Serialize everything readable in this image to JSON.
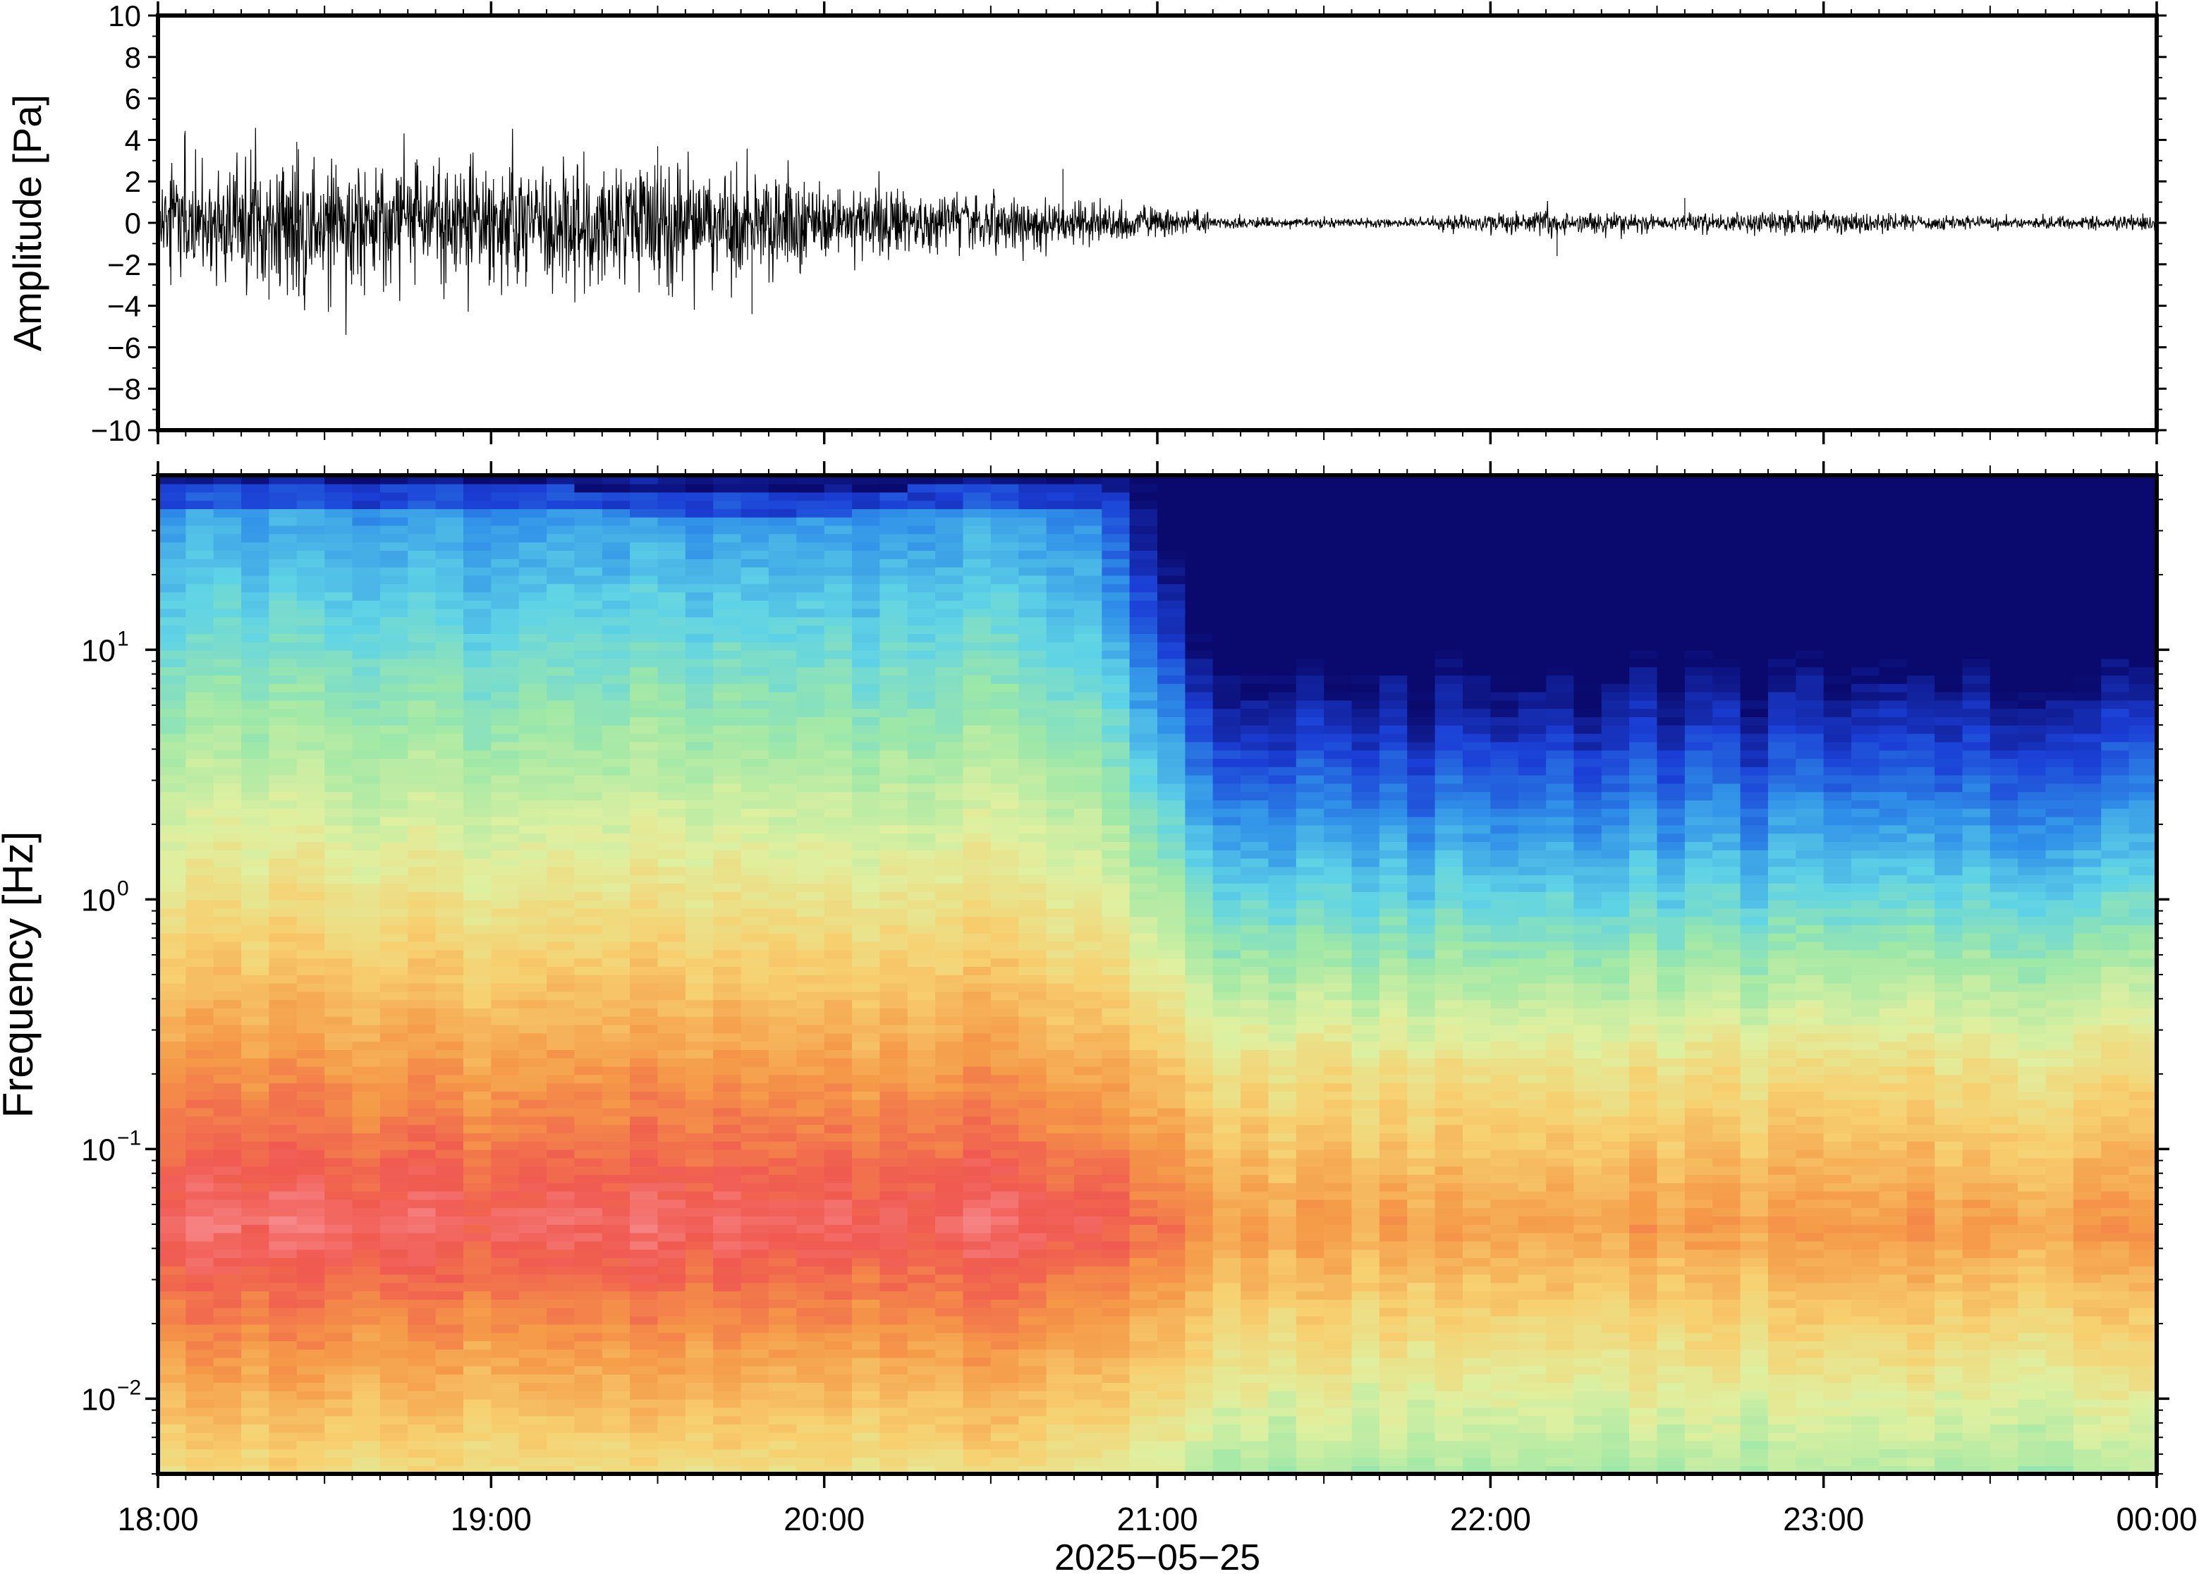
{
  "figure": {
    "date_label": "2025−05−25"
  },
  "chart_data": [
    {
      "type": "line",
      "panel": "waveform",
      "ylabel": "Amplitude [Pa]",
      "xlabel": "",
      "ylim": [
        -10,
        10
      ],
      "yticks": [
        10,
        8,
        6,
        4,
        2,
        0,
        -2,
        -4,
        -6,
        -8,
        -10
      ],
      "ytick_labels": [
        "10",
        "8",
        "6",
        "4",
        "2",
        "0",
        "−2",
        "−4",
        "−6",
        "−8",
        "−10"
      ],
      "x_range_hours": [
        "18:00",
        "00:00"
      ],
      "line_color": "#000000",
      "envelope": {
        "x": [
          "18:00",
          "18:30",
          "19:00",
          "19:30",
          "19:50",
          "20:00",
          "20:30",
          "21:00",
          "21:15",
          "21:30",
          "21:45",
          "22:00",
          "22:10",
          "22:15",
          "22:30",
          "22:45",
          "23:00",
          "23:15",
          "23:30",
          "23:45",
          "00:00"
        ],
        "amplitude": [
          2.0,
          2.2,
          2.0,
          2.1,
          1.8,
          1.3,
          0.9,
          0.5,
          0.2,
          0.15,
          0.15,
          0.3,
          0.45,
          0.35,
          0.3,
          0.35,
          0.4,
          0.25,
          0.2,
          0.2,
          0.25
        ]
      },
      "spikes": [
        {
          "x": "18:00",
          "value": 3.3
        },
        {
          "x": "18:25",
          "value": 3.9
        },
        {
          "x": "18:20",
          "value": -3.7
        },
        {
          "x": "19:30",
          "value": 3.7
        },
        {
          "x": "19:32",
          "value": -3.5
        },
        {
          "x": "19:47",
          "value": -4.4
        },
        {
          "x": "20:43",
          "value": 2.6
        },
        {
          "x": "22:12",
          "value": -1.6
        },
        {
          "x": "22:35",
          "value": 1.2
        }
      ]
    },
    {
      "type": "heatmap",
      "panel": "spectrogram",
      "ylabel": "Frequency [Hz]",
      "xlabel": "2025−05−25",
      "yscale": "log",
      "ylim": [
        0.005,
        50
      ],
      "yticks": [
        {
          "value": 10,
          "base": "10",
          "exp": "1"
        },
        {
          "value": 1,
          "base": "10",
          "exp": "0"
        },
        {
          "value": 0.1,
          "base": "10",
          "exp": "−1"
        },
        {
          "value": 0.01,
          "base": "10",
          "exp": "−2"
        }
      ],
      "xticks": [
        "18:00",
        "19:00",
        "20:00",
        "21:00",
        "22:00",
        "23:00",
        "00:00"
      ],
      "colormap": "rainbow",
      "colormap_stops": [
        "#0a0a6e",
        "#1b3fd6",
        "#2f8fe8",
        "#5fd3e6",
        "#9ee8a8",
        "#dff0a0",
        "#f7d070",
        "#f59a48",
        "#f05a50",
        "#fa9aa0"
      ],
      "energy_low_freq_edge_hz": {
        "x": [
          "18:00",
          "18:30",
          "19:00",
          "19:30",
          "20:00",
          "20:30",
          "20:50",
          "21:10",
          "21:15",
          "21:30",
          "22:00",
          "22:30",
          "23:00",
          "23:20",
          "23:40",
          "00:00"
        ],
        "top_dark_edge_hz": [
          48,
          45,
          45,
          44,
          44,
          45,
          45,
          25,
          12,
          14,
          13,
          16,
          18,
          18,
          10,
          11
        ]
      }
    }
  ]
}
